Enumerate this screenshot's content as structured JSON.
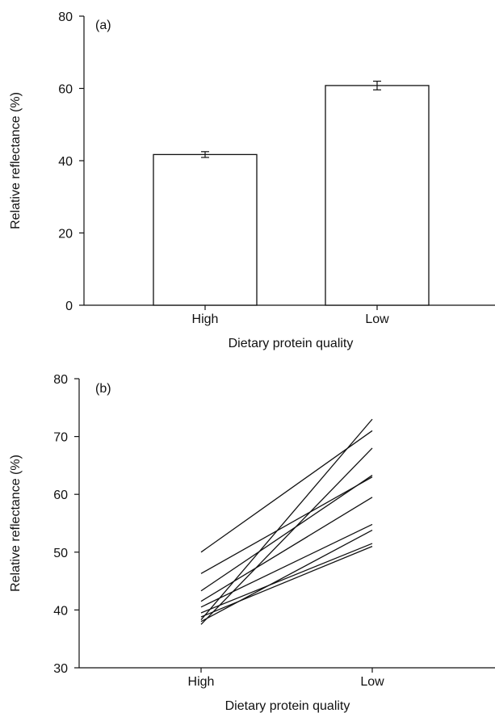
{
  "chart_data": [
    {
      "panel_label": "(a)",
      "type": "bar",
      "categories": [
        "High",
        "Low"
      ],
      "values": [
        41.7,
        60.8
      ],
      "errors": [
        0.8,
        1.2
      ],
      "xlabel": "Dietary protein quality",
      "ylabel": "Relative reflectance (%)",
      "ylim": [
        0,
        80
      ],
      "yticks": [
        0,
        20,
        40,
        60,
        80
      ],
      "grid": false
    },
    {
      "panel_label": "(b)",
      "type": "line",
      "categories": [
        "High",
        "Low"
      ],
      "series": [
        {
          "values": [
            50.0,
            71.0
          ]
        },
        {
          "values": [
            46.3,
            63.0
          ]
        },
        {
          "values": [
            43.3,
            63.3
          ]
        },
        {
          "values": [
            41.5,
            59.5
          ]
        },
        {
          "values": [
            40.5,
            54.8
          ]
        },
        {
          "values": [
            39.5,
            51.5
          ]
        },
        {
          "values": [
            38.8,
            51.0
          ]
        },
        {
          "values": [
            38.3,
            73.0
          ]
        },
        {
          "values": [
            38.0,
            53.8
          ]
        },
        {
          "values": [
            37.5,
            68.0
          ]
        }
      ],
      "xlabel": "Dietary protein quality",
      "ylabel": "Relative reflectance (%)",
      "ylim": [
        30,
        80
      ],
      "yticks": [
        30,
        40,
        50,
        60,
        70,
        80
      ],
      "grid": false
    }
  ]
}
